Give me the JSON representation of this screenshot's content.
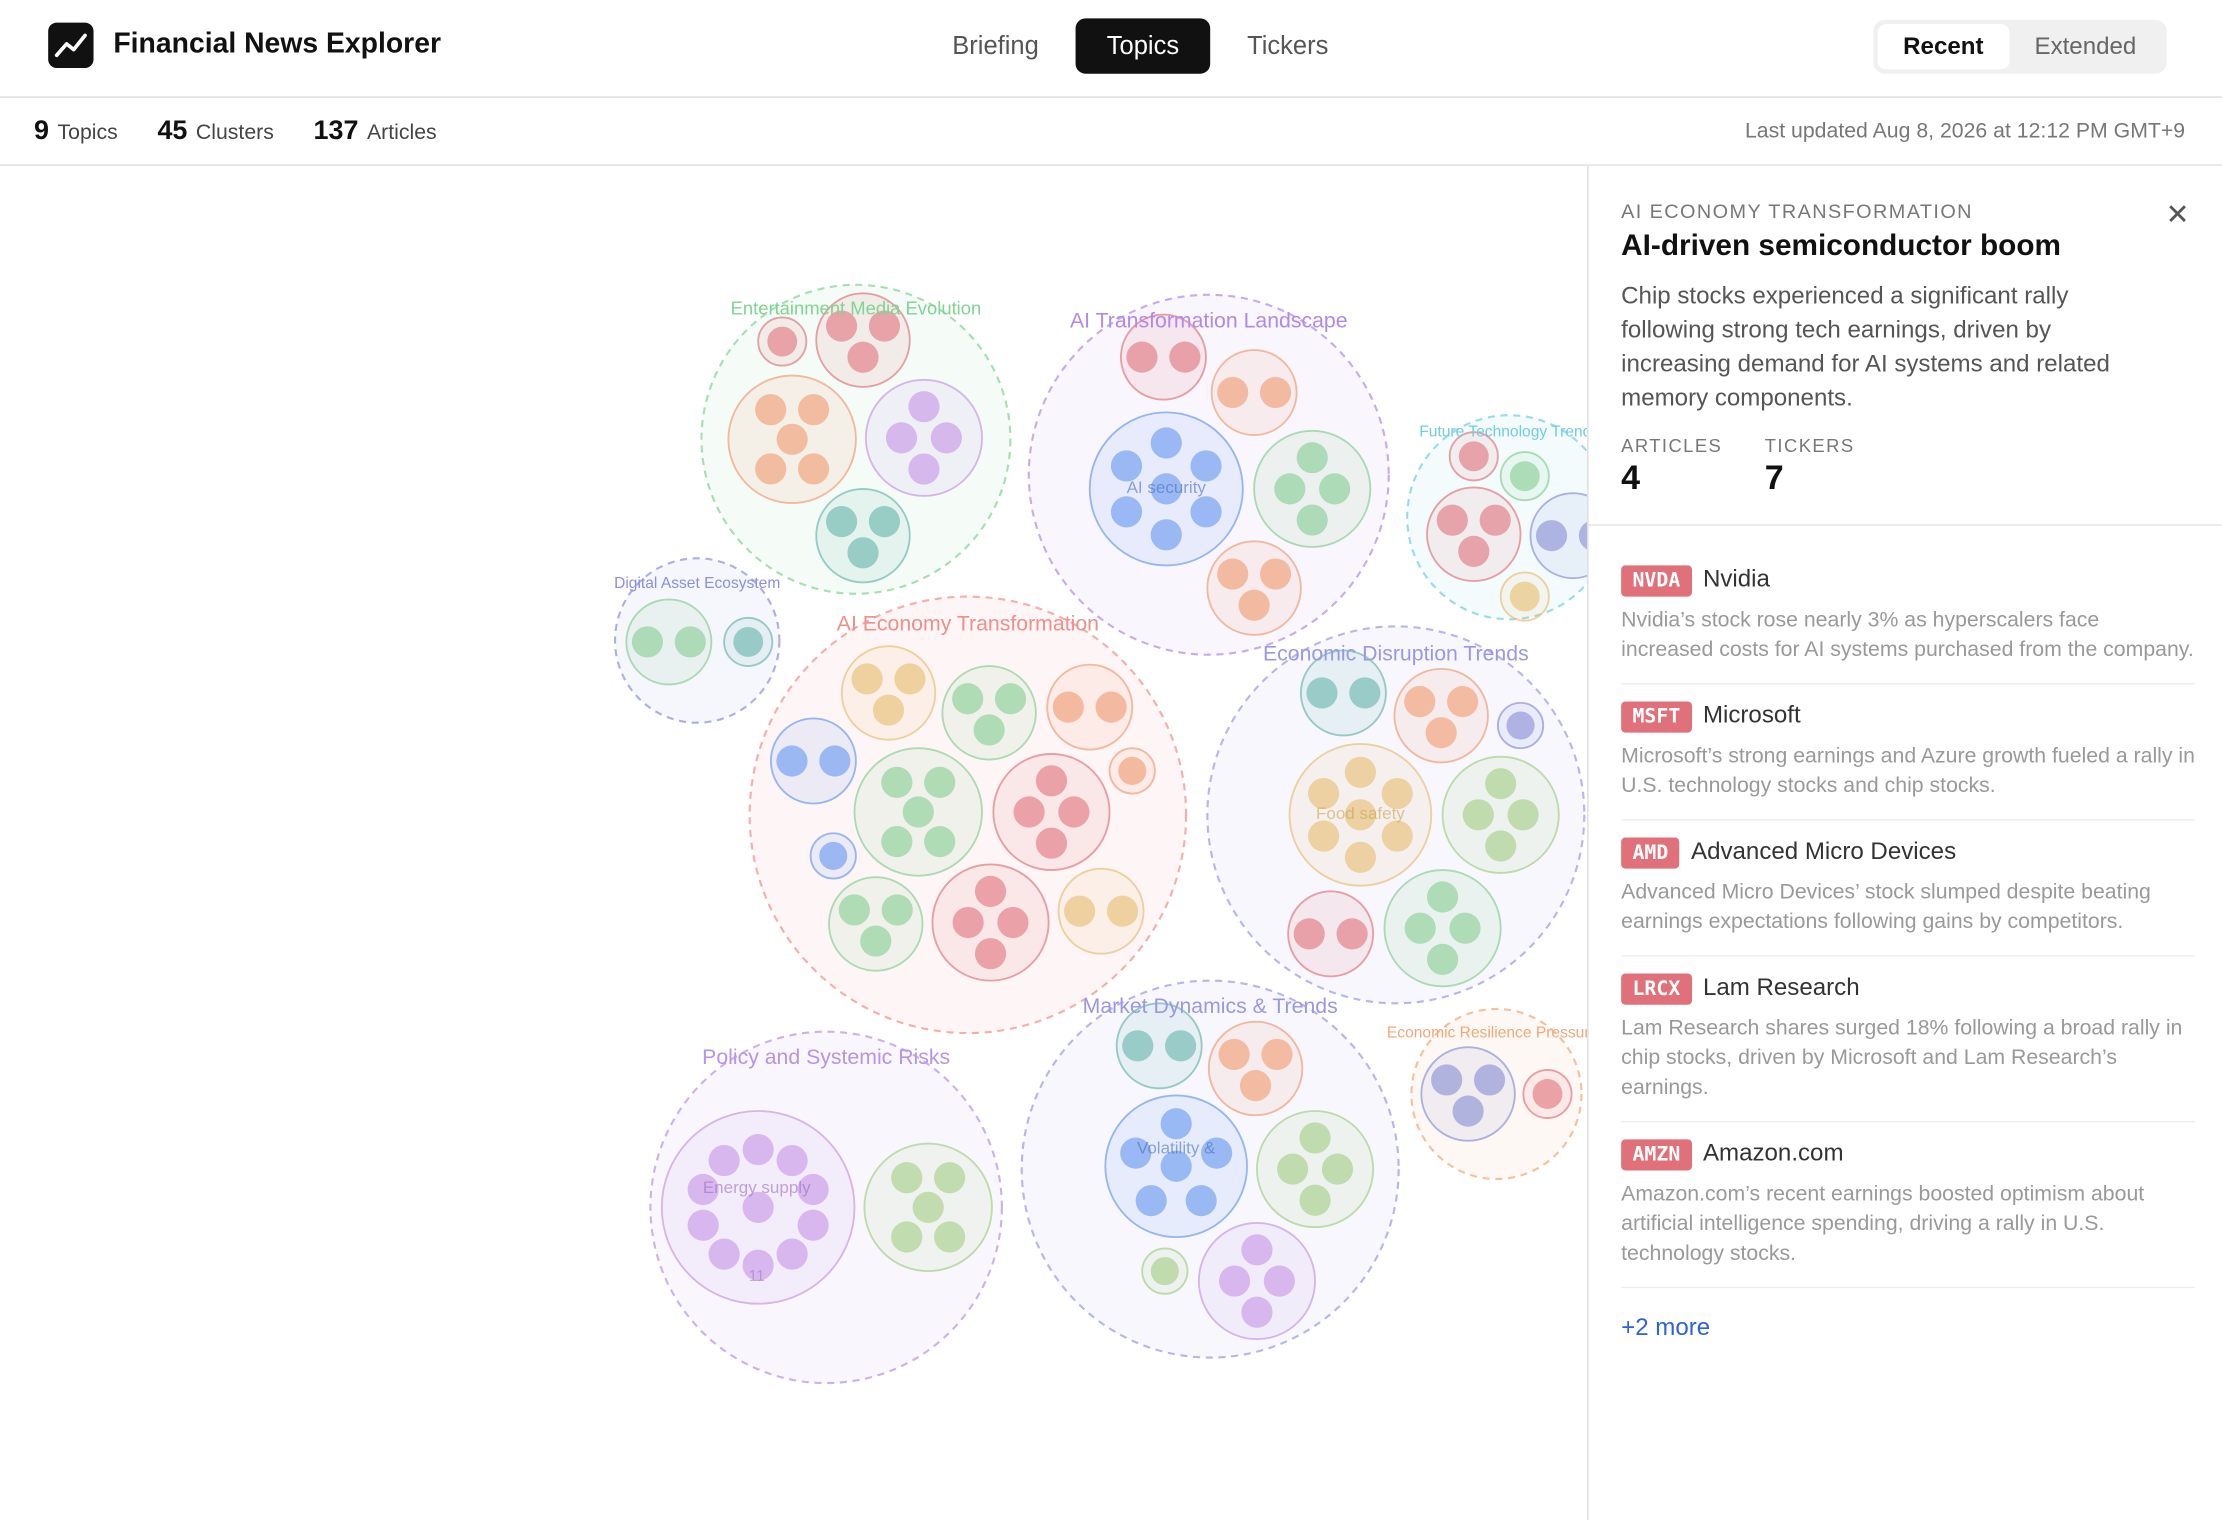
{
  "header": {
    "app_title": "Financial News Explorer",
    "tabs": [
      "Briefing",
      "Topics",
      "Tickers"
    ],
    "active_tab": 1,
    "range_options": [
      "Recent",
      "Extended"
    ],
    "active_range": 0
  },
  "stats": [
    {
      "value": 9,
      "label": "Topics"
    },
    {
      "value": 45,
      "label": "Clusters"
    },
    {
      "value": 137,
      "label": "Articles"
    }
  ],
  "last_updated": "Last updated Aug 8, 2026 at 12:12 PM GMT+9",
  "topics": [
    {
      "label": "Entertainment Media Evolution",
      "color": "#7fd394"
    },
    {
      "label": "AI Transformation Landscape",
      "color": "#b18ae6"
    },
    {
      "label": "Future Technology Trends",
      "color": "#6fcde0"
    },
    {
      "label": "Digital Asset Ecosystem",
      "color": "#8c8ee0"
    },
    {
      "label": "AI Economy Transformation",
      "color": "#ee8f8a"
    },
    {
      "label": "Economic Disruption Trends",
      "color": "#9a98e6"
    },
    {
      "label": "Policy and Systemic Risks",
      "color": "#b893e6"
    },
    {
      "label": "Market Dynamics & Trends",
      "color": "#9a98e6"
    },
    {
      "label": "Economic Resilience Pressures",
      "color": "#f0a878"
    }
  ],
  "cluster_labels": [
    {
      "text": "AI security"
    },
    {
      "text": "Food safety"
    },
    {
      "text": "Volatility &"
    },
    {
      "text": "Energy supply",
      "count": 11
    }
  ],
  "detail": {
    "topic": "AI ECONOMY TRANSFORMATION",
    "title": "AI-driven semiconductor boom",
    "description": "Chip stocks experienced a significant rally following strong tech earnings, driven by increasing demand for AI systems and related memory components.",
    "stats": [
      {
        "label": "ARTICLES",
        "value": 4
      },
      {
        "label": "TICKERS",
        "value": 7
      }
    ],
    "tickers": [
      {
        "symbol": "NVDA",
        "name": "Nvidia",
        "summary": "Nvidia’s stock rose nearly 3% as hyperscalers face increased costs for AI systems purchased from the company."
      },
      {
        "symbol": "MSFT",
        "name": "Microsoft",
        "summary": "Microsoft’s strong earnings and Azure growth fueled a rally in U.S. technology stocks and chip stocks."
      },
      {
        "symbol": "AMD",
        "name": "Advanced Micro Devices",
        "summary": "Advanced Micro Devices’ stock slumped despite beating earnings expectations following gains by competitors."
      },
      {
        "symbol": "LRCX",
        "name": "Lam Research",
        "summary": "Lam Research shares surged 18% following a broad rally in chip stocks, driven by Microsoft and Lam Research’s earnings."
      },
      {
        "symbol": "AMZN",
        "name": "Amazon.com",
        "summary": "Amazon.com’s recent earnings boosted optimism about artificial intelligence spending, driving a rally in U.S. technology stocks."
      }
    ],
    "more": "+2 more"
  }
}
